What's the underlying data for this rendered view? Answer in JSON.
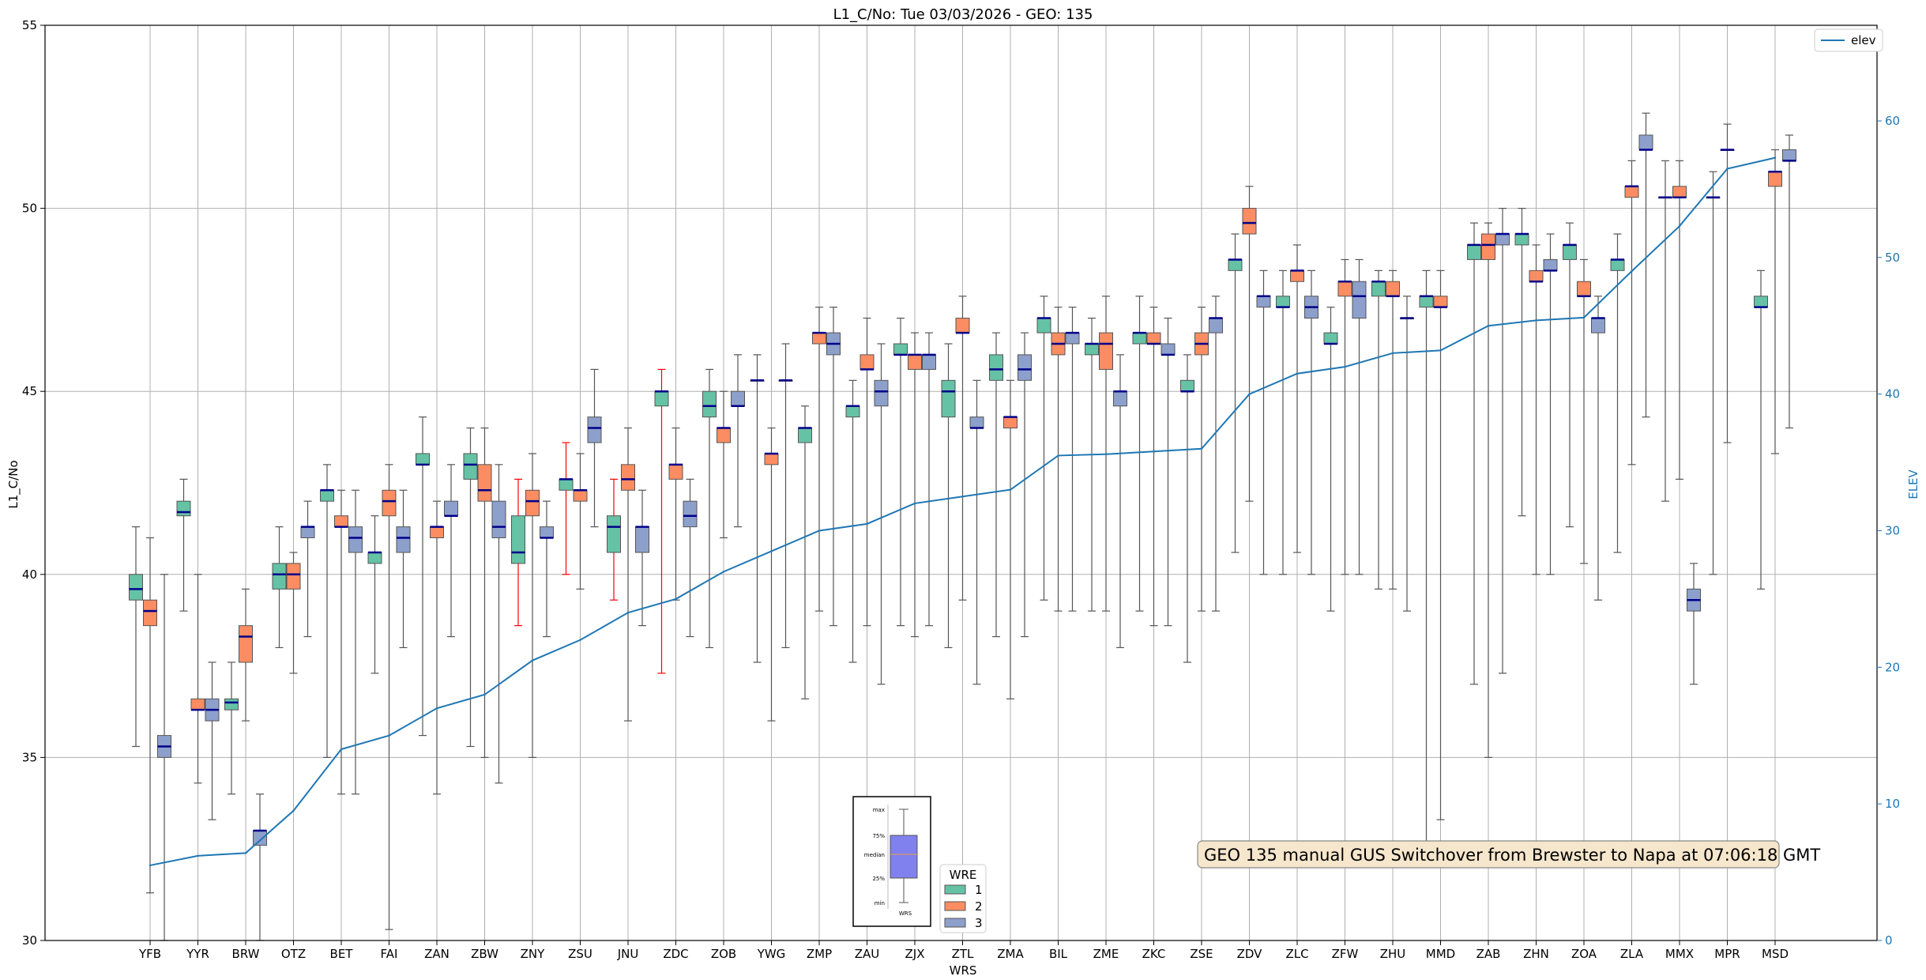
{
  "chart_data": {
    "type": "boxplot",
    "title": "L1_C/No: Tue 03/03/2026 - GEO: 135",
    "xlabel": "WRS",
    "ylabel": "L1_C/No",
    "ylabel_right": "ELEV",
    "ylim": [
      30,
      55
    ],
    "ylim_right": [
      0,
      67
    ],
    "yticks": [
      "30",
      "35",
      "40",
      "45",
      "50",
      "55"
    ],
    "yticks_right": [
      "0",
      "10",
      "20",
      "30",
      "40",
      "50",
      "60"
    ],
    "grid": true,
    "colors": {
      "wre1": "#66c2a5",
      "wre2": "#fc8d62",
      "wre3": "#8da0cb",
      "median": "#00008b",
      "elev": "#1f77b4",
      "whisker": "#555555",
      "whisker_alt": "#ff0000"
    },
    "categories": [
      "YFB",
      "YYR",
      "BRW",
      "OTZ",
      "BET",
      "FAI",
      "ZAN",
      "ZBW",
      "ZNY",
      "ZSU",
      "JNU",
      "ZDC",
      "ZOB",
      "YWG",
      "ZMP",
      "ZAU",
      "ZJX",
      "ZTL",
      "ZMA",
      "BIL",
      "ZME",
      "ZKC",
      "ZSE",
      "ZDV",
      "ZLC",
      "ZFW",
      "ZHU",
      "MMD",
      "ZAB",
      "ZHN",
      "ZOA",
      "ZLA",
      "MMX",
      "MPR",
      "MSD"
    ],
    "boxes": [
      {
        "station": "YFB",
        "wre": 1,
        "min": 35.3,
        "q1": 39.3,
        "median": 39.6,
        "q3": 40.0,
        "max": 41.3
      },
      {
        "station": "YFB",
        "wre": 2,
        "min": 31.3,
        "q1": 38.6,
        "median": 39.0,
        "q3": 39.3,
        "max": 41.0
      },
      {
        "station": "YFB",
        "wre": 3,
        "min": 30.0,
        "q1": 35.0,
        "median": 35.3,
        "q3": 35.6,
        "max": 40.0
      },
      {
        "station": "YYR",
        "wre": 1,
        "min": 39.0,
        "q1": 41.6,
        "median": 41.7,
        "q3": 42.0,
        "max": 42.6
      },
      {
        "station": "YYR",
        "wre": 2,
        "min": 34.3,
        "q1": 36.3,
        "median": 36.3,
        "q3": 36.6,
        "max": 40.0
      },
      {
        "station": "YYR",
        "wre": 3,
        "min": 33.3,
        "q1": 36.0,
        "median": 36.3,
        "q3": 36.6,
        "max": 37.6
      },
      {
        "station": "BRW",
        "wre": 1,
        "min": 34.0,
        "q1": 36.3,
        "median": 36.5,
        "q3": 36.6,
        "max": 37.6
      },
      {
        "station": "BRW",
        "wre": 2,
        "min": 36.0,
        "q1": 37.6,
        "median": 38.3,
        "q3": 38.6,
        "max": 39.6
      },
      {
        "station": "BRW",
        "wre": 3,
        "min": 30.0,
        "q1": 32.6,
        "median": 33.0,
        "q3": 33.0,
        "max": 34.0
      },
      {
        "station": "OTZ",
        "wre": 1,
        "min": 38.0,
        "q1": 39.6,
        "median": 40.0,
        "q3": 40.3,
        "max": 41.3
      },
      {
        "station": "OTZ",
        "wre": 2,
        "min": 37.3,
        "q1": 39.6,
        "median": 40.0,
        "q3": 40.3,
        "max": 40.6
      },
      {
        "station": "OTZ",
        "wre": 3,
        "min": 38.3,
        "q1": 41.0,
        "median": 41.3,
        "q3": 41.3,
        "max": 42.0
      },
      {
        "station": "BET",
        "wre": 1,
        "min": 35.0,
        "q1": 42.0,
        "median": 42.3,
        "q3": 42.3,
        "max": 43.0
      },
      {
        "station": "BET",
        "wre": 2,
        "min": 34.0,
        "q1": 41.3,
        "median": 41.3,
        "q3": 41.6,
        "max": 42.3
      },
      {
        "station": "BET",
        "wre": 3,
        "min": 34.0,
        "q1": 40.6,
        "median": 41.0,
        "q3": 41.3,
        "max": 42.3
      },
      {
        "station": "FAI",
        "wre": 1,
        "min": 37.3,
        "q1": 40.3,
        "median": 40.6,
        "q3": 40.6,
        "max": 41.6
      },
      {
        "station": "FAI",
        "wre": 2,
        "min": 30.3,
        "q1": 41.6,
        "median": 42.0,
        "q3": 42.3,
        "max": 43.0
      },
      {
        "station": "FAI",
        "wre": 3,
        "min": 38.0,
        "q1": 40.6,
        "median": 41.0,
        "q3": 41.3,
        "max": 42.3
      },
      {
        "station": "ZAN",
        "wre": 1,
        "min": 35.6,
        "q1": 43.0,
        "median": 43.0,
        "q3": 43.3,
        "max": 44.3
      },
      {
        "station": "ZAN",
        "wre": 2,
        "min": 34.0,
        "q1": 41.0,
        "median": 41.3,
        "q3": 41.3,
        "max": 42.0
      },
      {
        "station": "ZAN",
        "wre": 3,
        "min": 38.3,
        "q1": 41.6,
        "median": 41.6,
        "q3": 42.0,
        "max": 43.0
      },
      {
        "station": "ZBW",
        "wre": 1,
        "min": 35.3,
        "q1": 42.6,
        "median": 43.0,
        "q3": 43.3,
        "max": 44.0
      },
      {
        "station": "ZBW",
        "wre": 2,
        "min": 35.0,
        "q1": 42.0,
        "median": 42.3,
        "q3": 43.0,
        "max": 44.0
      },
      {
        "station": "ZBW",
        "wre": 3,
        "min": 34.3,
        "q1": 41.0,
        "median": 41.3,
        "q3": 42.0,
        "max": 43.0
      },
      {
        "station": "ZNY",
        "wre": 1,
        "min": 38.6,
        "q1": 40.3,
        "median": 40.6,
        "q3": 41.6,
        "max": 42.6,
        "whisker": "red"
      },
      {
        "station": "ZNY",
        "wre": 2,
        "min": 35.0,
        "q1": 41.6,
        "median": 42.0,
        "q3": 42.3,
        "max": 43.3
      },
      {
        "station": "ZNY",
        "wre": 3,
        "min": 38.3,
        "q1": 41.0,
        "median": 41.0,
        "q3": 41.3,
        "max": 42.0
      },
      {
        "station": "ZSU",
        "wre": 1,
        "min": 40.0,
        "q1": 42.3,
        "median": 42.6,
        "q3": 42.6,
        "max": 43.6,
        "whisker": "red"
      },
      {
        "station": "ZSU",
        "wre": 2,
        "min": 39.6,
        "q1": 42.0,
        "median": 42.3,
        "q3": 42.3,
        "max": 43.3
      },
      {
        "station": "ZSU",
        "wre": 3,
        "min": 41.3,
        "q1": 43.6,
        "median": 44.0,
        "q3": 44.3,
        "max": 45.6
      },
      {
        "station": "JNU",
        "wre": 1,
        "min": 39.3,
        "q1": 40.6,
        "median": 41.3,
        "q3": 41.6,
        "max": 42.6,
        "whisker": "red"
      },
      {
        "station": "JNU",
        "wre": 2,
        "min": 36.0,
        "q1": 42.3,
        "median": 42.6,
        "q3": 43.0,
        "max": 44.0
      },
      {
        "station": "JNU",
        "wre": 3,
        "min": 38.6,
        "q1": 40.6,
        "median": 41.3,
        "q3": 41.3,
        "max": 42.3
      },
      {
        "station": "ZDC",
        "wre": 1,
        "min": 37.3,
        "q1": 44.6,
        "median": 45.0,
        "q3": 45.0,
        "max": 45.6,
        "whisker": "red"
      },
      {
        "station": "ZDC",
        "wre": 2,
        "min": 39.3,
        "q1": 42.6,
        "median": 43.0,
        "q3": 43.0,
        "max": 44.0
      },
      {
        "station": "ZDC",
        "wre": 3,
        "min": 38.3,
        "q1": 41.3,
        "median": 41.6,
        "q3": 42.0,
        "max": 42.6
      },
      {
        "station": "ZOB",
        "wre": 1,
        "min": 38.0,
        "q1": 44.3,
        "median": 44.6,
        "q3": 45.0,
        "max": 45.6
      },
      {
        "station": "ZOB",
        "wre": 2,
        "min": 41.0,
        "q1": 43.6,
        "median": 44.0,
        "q3": 44.0,
        "max": 45.0
      },
      {
        "station": "ZOB",
        "wre": 3,
        "min": 41.3,
        "q1": 44.6,
        "median": 44.6,
        "q3": 45.0,
        "max": 46.0
      },
      {
        "station": "YWG",
        "wre": 1,
        "min": 37.6,
        "q1": 45.3,
        "median": 45.3,
        "q3": 45.3,
        "max": 46.0
      },
      {
        "station": "YWG",
        "wre": 2,
        "min": 36.0,
        "q1": 43.0,
        "median": 43.3,
        "q3": 43.3,
        "max": 44.0
      },
      {
        "station": "YWG",
        "wre": 3,
        "min": 38.0,
        "q1": 45.3,
        "median": 45.3,
        "q3": 45.3,
        "max": 46.3
      },
      {
        "station": "ZMP",
        "wre": 1,
        "min": 36.6,
        "q1": 43.6,
        "median": 44.0,
        "q3": 44.0,
        "max": 44.6
      },
      {
        "station": "ZMP",
        "wre": 2,
        "min": 39.0,
        "q1": 46.3,
        "median": 46.6,
        "q3": 46.6,
        "max": 47.3
      },
      {
        "station": "ZMP",
        "wre": 3,
        "min": 38.6,
        "q1": 46.0,
        "median": 46.3,
        "q3": 46.6,
        "max": 47.3
      },
      {
        "station": "ZAU",
        "wre": 1,
        "min": 37.6,
        "q1": 44.3,
        "median": 44.6,
        "q3": 44.6,
        "max": 45.3
      },
      {
        "station": "ZAU",
        "wre": 2,
        "min": 38.6,
        "q1": 45.6,
        "median": 45.6,
        "q3": 46.0,
        "max": 47.0
      },
      {
        "station": "ZAU",
        "wre": 3,
        "min": 37.0,
        "q1": 44.6,
        "median": 45.0,
        "q3": 45.3,
        "max": 46.3
      },
      {
        "station": "ZJX",
        "wre": 1,
        "min": 38.6,
        "q1": 46.0,
        "median": 46.0,
        "q3": 46.3,
        "max": 47.0
      },
      {
        "station": "ZJX",
        "wre": 2,
        "min": 38.3,
        "q1": 45.6,
        "median": 46.0,
        "q3": 46.0,
        "max": 46.6
      },
      {
        "station": "ZJX",
        "wre": 3,
        "min": 38.6,
        "q1": 45.6,
        "median": 46.0,
        "q3": 46.0,
        "max": 46.6
      },
      {
        "station": "ZTL",
        "wre": 1,
        "min": 38.0,
        "q1": 44.3,
        "median": 45.0,
        "q3": 45.3,
        "max": 46.3
      },
      {
        "station": "ZTL",
        "wre": 2,
        "min": 39.3,
        "q1": 46.6,
        "median": 46.6,
        "q3": 47.0,
        "max": 47.6
      },
      {
        "station": "ZTL",
        "wre": 3,
        "min": 37.0,
        "q1": 44.0,
        "median": 44.0,
        "q3": 44.3,
        "max": 45.3
      },
      {
        "station": "ZMA",
        "wre": 1,
        "min": 38.3,
        "q1": 45.3,
        "median": 45.6,
        "q3": 46.0,
        "max": 46.6
      },
      {
        "station": "ZMA",
        "wre": 2,
        "min": 36.6,
        "q1": 44.0,
        "median": 44.3,
        "q3": 44.3,
        "max": 45.3
      },
      {
        "station": "ZMA",
        "wre": 3,
        "min": 38.3,
        "q1": 45.3,
        "median": 45.6,
        "q3": 46.0,
        "max": 46.6
      },
      {
        "station": "BIL",
        "wre": 1,
        "min": 39.3,
        "q1": 46.6,
        "median": 47.0,
        "q3": 47.0,
        "max": 47.6
      },
      {
        "station": "BIL",
        "wre": 2,
        "min": 39.0,
        "q1": 46.0,
        "median": 46.3,
        "q3": 46.6,
        "max": 47.3
      },
      {
        "station": "BIL",
        "wre": 3,
        "min": 39.0,
        "q1": 46.3,
        "median": 46.6,
        "q3": 46.6,
        "max": 47.3
      },
      {
        "station": "ZME",
        "wre": 1,
        "min": 39.0,
        "q1": 46.0,
        "median": 46.3,
        "q3": 46.3,
        "max": 47.0
      },
      {
        "station": "ZME",
        "wre": 2,
        "min": 39.0,
        "q1": 45.6,
        "median": 46.3,
        "q3": 46.6,
        "max": 47.6
      },
      {
        "station": "ZME",
        "wre": 3,
        "min": 38.0,
        "q1": 44.6,
        "median": 45.0,
        "q3": 45.0,
        "max": 46.0
      },
      {
        "station": "ZKC",
        "wre": 1,
        "min": 39.0,
        "q1": 46.3,
        "median": 46.6,
        "q3": 46.6,
        "max": 47.6
      },
      {
        "station": "ZKC",
        "wre": 2,
        "min": 38.6,
        "q1": 46.3,
        "median": 46.3,
        "q3": 46.6,
        "max": 47.3
      },
      {
        "station": "ZKC",
        "wre": 3,
        "min": 38.6,
        "q1": 46.0,
        "median": 46.0,
        "q3": 46.3,
        "max": 47.0
      },
      {
        "station": "ZSE",
        "wre": 1,
        "min": 37.6,
        "q1": 45.0,
        "median": 45.0,
        "q3": 45.3,
        "max": 46.0
      },
      {
        "station": "ZSE",
        "wre": 2,
        "min": 39.0,
        "q1": 46.0,
        "median": 46.3,
        "q3": 46.6,
        "max": 47.3
      },
      {
        "station": "ZSE",
        "wre": 3,
        "min": 39.0,
        "q1": 46.6,
        "median": 47.0,
        "q3": 47.0,
        "max": 47.6
      },
      {
        "station": "ZDV",
        "wre": 1,
        "min": 40.6,
        "q1": 48.3,
        "median": 48.6,
        "q3": 48.6,
        "max": 49.3
      },
      {
        "station": "ZDV",
        "wre": 2,
        "min": 42.0,
        "q1": 49.3,
        "median": 49.6,
        "q3": 50.0,
        "max": 50.6
      },
      {
        "station": "ZDV",
        "wre": 3,
        "min": 40.0,
        "q1": 47.3,
        "median": 47.6,
        "q3": 47.6,
        "max": 48.3
      },
      {
        "station": "ZLC",
        "wre": 1,
        "min": 40.0,
        "q1": 47.3,
        "median": 47.3,
        "q3": 47.6,
        "max": 48.3
      },
      {
        "station": "ZLC",
        "wre": 2,
        "min": 40.6,
        "q1": 48.0,
        "median": 48.3,
        "q3": 48.3,
        "max": 49.0
      },
      {
        "station": "ZLC",
        "wre": 3,
        "min": 40.0,
        "q1": 47.0,
        "median": 47.3,
        "q3": 47.6,
        "max": 48.3
      },
      {
        "station": "ZFW",
        "wre": 1,
        "min": 39.0,
        "q1": 46.3,
        "median": 46.3,
        "q3": 46.6,
        "max": 47.3
      },
      {
        "station": "ZFW",
        "wre": 2,
        "min": 40.0,
        "q1": 47.6,
        "median": 48.0,
        "q3": 48.0,
        "max": 48.6
      },
      {
        "station": "ZFW",
        "wre": 3,
        "min": 40.0,
        "q1": 47.0,
        "median": 47.6,
        "q3": 48.0,
        "max": 48.6
      },
      {
        "station": "ZHU",
        "wre": 1,
        "min": 39.6,
        "q1": 47.6,
        "median": 48.0,
        "q3": 48.0,
        "max": 48.3
      },
      {
        "station": "ZHU",
        "wre": 2,
        "min": 39.6,
        "q1": 47.6,
        "median": 47.6,
        "q3": 48.0,
        "max": 48.3
      },
      {
        "station": "ZHU",
        "wre": 3,
        "min": 39.0,
        "q1": 47.0,
        "median": 47.0,
        "q3": 47.0,
        "max": 47.6
      },
      {
        "station": "MMD",
        "wre": 1,
        "min": 32.6,
        "q1": 47.3,
        "median": 47.6,
        "q3": 47.6,
        "max": 48.3
      },
      {
        "station": "MMD",
        "wre": 2,
        "min": 33.3,
        "q1": 47.3,
        "median": 47.3,
        "q3": 47.6,
        "max": 48.3
      },
      {
        "station": "ZAB",
        "wre": 1,
        "min": 37.0,
        "q1": 48.6,
        "median": 49.0,
        "q3": 49.0,
        "max": 49.6
      },
      {
        "station": "ZAB",
        "wre": 2,
        "min": 35.0,
        "q1": 48.6,
        "median": 49.0,
        "q3": 49.3,
        "max": 49.6
      },
      {
        "station": "ZAB",
        "wre": 3,
        "min": 37.3,
        "q1": 49.0,
        "median": 49.3,
        "q3": 49.3,
        "max": 50.0
      },
      {
        "station": "ZHN",
        "wre": 1,
        "min": 41.6,
        "q1": 49.0,
        "median": 49.3,
        "q3": 49.3,
        "max": 50.0
      },
      {
        "station": "ZHN",
        "wre": 2,
        "min": 40.0,
        "q1": 48.0,
        "median": 48.0,
        "q3": 48.3,
        "max": 49.0
      },
      {
        "station": "ZHN",
        "wre": 3,
        "min": 40.0,
        "q1": 48.3,
        "median": 48.3,
        "q3": 48.6,
        "max": 49.3
      },
      {
        "station": "ZOA",
        "wre": 1,
        "min": 41.3,
        "q1": 48.6,
        "median": 49.0,
        "q3": 49.0,
        "max": 49.6
      },
      {
        "station": "ZOA",
        "wre": 2,
        "min": 40.3,
        "q1": 47.6,
        "median": 47.6,
        "q3": 48.0,
        "max": 48.6
      },
      {
        "station": "ZOA",
        "wre": 3,
        "min": 39.3,
        "q1": 46.6,
        "median": 47.0,
        "q3": 47.0,
        "max": 47.6
      },
      {
        "station": "ZLA",
        "wre": 1,
        "min": 40.6,
        "q1": 48.3,
        "median": 48.6,
        "q3": 48.6,
        "max": 49.3
      },
      {
        "station": "ZLA",
        "wre": 2,
        "min": 43.0,
        "q1": 50.3,
        "median": 50.6,
        "q3": 50.6,
        "max": 51.3
      },
      {
        "station": "ZLA",
        "wre": 3,
        "min": 44.3,
        "q1": 51.6,
        "median": 51.6,
        "q3": 52.0,
        "max": 52.6
      },
      {
        "station": "MMX",
        "wre": 1,
        "min": 42.0,
        "q1": 50.3,
        "median": 50.3,
        "q3": 50.3,
        "max": 51.3
      },
      {
        "station": "MMX",
        "wre": 2,
        "min": 42.6,
        "q1": 50.3,
        "median": 50.3,
        "q3": 50.6,
        "max": 51.3
      },
      {
        "station": "MMX",
        "wre": 3,
        "min": 37.0,
        "q1": 39.0,
        "median": 39.3,
        "q3": 39.6,
        "max": 40.3
      },
      {
        "station": "MPR",
        "wre": 1,
        "min": 40.0,
        "q1": 50.3,
        "median": 50.3,
        "q3": 50.3,
        "max": 51.0
      },
      {
        "station": "MPR",
        "wre": 2,
        "min": 43.6,
        "q1": 51.6,
        "median": 51.6,
        "q3": 51.6,
        "max": 52.3
      },
      {
        "station": "MSD",
        "wre": 1,
        "min": 39.6,
        "q1": 47.3,
        "median": 47.3,
        "q3": 47.6,
        "max": 48.3
      },
      {
        "station": "MSD",
        "wre": 2,
        "min": 43.3,
        "q1": 50.6,
        "median": 51.0,
        "q3": 51.0,
        "max": 51.6
      },
      {
        "station": "MSD",
        "wre": 3,
        "min": 44.0,
        "q1": 51.3,
        "median": 51.3,
        "q3": 51.6,
        "max": 52.0
      }
    ],
    "elev_series": {
      "name": "elev",
      "values": [
        5.5,
        6.2,
        6.4,
        9.5,
        14.0,
        15.0,
        17.0,
        18.0,
        20.5,
        22.0,
        24.0,
        25.0,
        27.0,
        28.5,
        30.0,
        30.5,
        32.0,
        32.5,
        33.0,
        35.5,
        35.6,
        35.8,
        36.0,
        40.0,
        41.5,
        42.0,
        43.0,
        43.2,
        45.0,
        45.4,
        45.6,
        49.0,
        52.3,
        56.5,
        57.3
      ]
    },
    "legend": {
      "title": "WRE",
      "items": [
        "1",
        "2",
        "3"
      ],
      "elev_label": "elev"
    },
    "legend_box_labels": [
      "max",
      "75%",
      "median",
      "25%",
      "min"
    ],
    "legend_box_xlabel": "WRS",
    "annotation": "GEO 135 manual GUS Switchover from Brewster to Napa at 07:06:18 GMT"
  }
}
